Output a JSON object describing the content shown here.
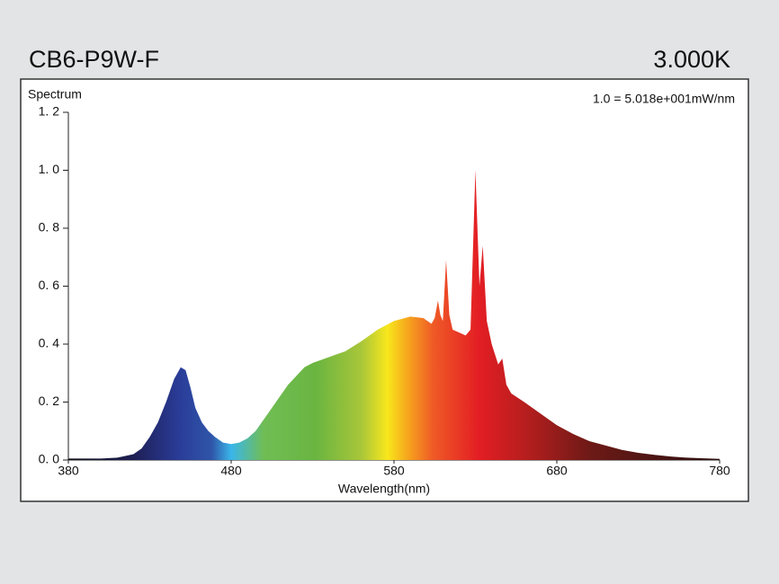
{
  "chart_data": {
    "type": "area",
    "header_left": "CB6-P9W-F",
    "header_right": "3.000K",
    "ylabel": "Spectrum",
    "xlabel": "Wavelength(nm)",
    "annotation": "1.0 =  5.018e+001mW/nm",
    "x": [
      380,
      390,
      400,
      410,
      420,
      425,
      430,
      435,
      440,
      445,
      449,
      452,
      455,
      458,
      462,
      466,
      470,
      475,
      480,
      485,
      490,
      495,
      500,
      505,
      510,
      515,
      520,
      525,
      530,
      540,
      550,
      560,
      570,
      580,
      590,
      598,
      603,
      605,
      607,
      608.5,
      610,
      612,
      614,
      616,
      620,
      624,
      627,
      630,
      632.5,
      634.5,
      637,
      640,
      644,
      646.5,
      649,
      652,
      660,
      670,
      680,
      690,
      700,
      710,
      720,
      730,
      740,
      750,
      760,
      770,
      780
    ],
    "values": [
      0.005,
      0.005,
      0.005,
      0.008,
      0.02,
      0.04,
      0.08,
      0.13,
      0.2,
      0.28,
      0.32,
      0.31,
      0.25,
      0.18,
      0.13,
      0.1,
      0.08,
      0.06,
      0.055,
      0.06,
      0.075,
      0.1,
      0.14,
      0.18,
      0.22,
      0.26,
      0.29,
      0.32,
      0.335,
      0.355,
      0.375,
      0.41,
      0.45,
      0.48,
      0.495,
      0.49,
      0.47,
      0.49,
      0.55,
      0.5,
      0.48,
      0.69,
      0.5,
      0.45,
      0.44,
      0.43,
      0.45,
      1.0,
      0.6,
      0.74,
      0.48,
      0.4,
      0.33,
      0.35,
      0.26,
      0.23,
      0.2,
      0.16,
      0.12,
      0.09,
      0.065,
      0.05,
      0.035,
      0.025,
      0.018,
      0.012,
      0.008,
      0.006,
      0.004
    ],
    "xlim": [
      380,
      780
    ],
    "xticks": [
      380,
      480,
      580,
      680,
      780
    ],
    "ylim": [
      0,
      1.2
    ],
    "yticks": [
      {
        "value": 0,
        "label": "0. 0"
      },
      {
        "value": 0.2,
        "label": "0. 2"
      },
      {
        "value": 0.4,
        "label": "0. 4"
      },
      {
        "value": 0.6,
        "label": "0. 6"
      },
      {
        "value": 0.8,
        "label": "0. 8"
      },
      {
        "value": 1.0,
        "label": "1. 0"
      },
      {
        "value": 1.2,
        "label": "1. 2"
      }
    ]
  }
}
